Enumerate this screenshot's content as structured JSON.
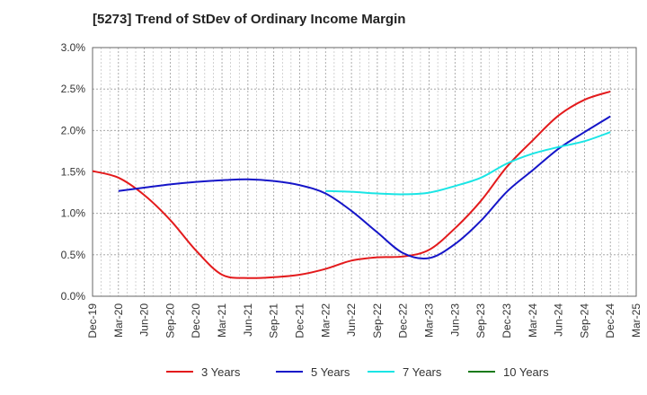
{
  "chart_data": {
    "type": "line",
    "title": "[5273]  Trend of StDev of Ordinary Income Margin",
    "xlabel": "",
    "ylabel": "",
    "ylim": [
      0,
      3.0
    ],
    "y_ticks": [
      "0.0%",
      "0.5%",
      "1.0%",
      "1.5%",
      "2.0%",
      "2.5%",
      "3.0%"
    ],
    "x_ticks": [
      "Dec-19",
      "Mar-20",
      "Jun-20",
      "Sep-20",
      "Dec-20",
      "Mar-21",
      "Jun-21",
      "Sep-21",
      "Dec-21",
      "Mar-22",
      "Jun-22",
      "Sep-22",
      "Dec-22",
      "Mar-23",
      "Jun-23",
      "Sep-23",
      "Dec-23",
      "Mar-24",
      "Jun-24",
      "Sep-24",
      "Dec-24",
      "Mar-25"
    ],
    "grid": true,
    "legend_position": "bottom",
    "series": [
      {
        "name": "3 Years",
        "color": "#e31a1c",
        "values": [
          1.51,
          1.43,
          1.22,
          0.92,
          0.55,
          0.26,
          0.22,
          0.23,
          0.26,
          0.33,
          0.43,
          0.47,
          0.48,
          0.56,
          0.82,
          1.15,
          1.56,
          1.88,
          2.18,
          2.37,
          2.47,
          null
        ]
      },
      {
        "name": "5 Years",
        "color": "#1515c8",
        "values": [
          null,
          1.27,
          1.31,
          1.35,
          1.38,
          1.4,
          1.41,
          1.39,
          1.34,
          1.24,
          1.03,
          0.77,
          0.52,
          0.46,
          0.63,
          0.91,
          1.26,
          1.52,
          1.78,
          1.98,
          2.17,
          null
        ]
      },
      {
        "name": "7 Years",
        "color": "#1ae5e5",
        "values": [
          null,
          null,
          null,
          null,
          null,
          null,
          null,
          null,
          null,
          1.27,
          1.26,
          1.24,
          1.23,
          1.25,
          1.33,
          1.43,
          1.6,
          1.72,
          1.8,
          1.87,
          1.98,
          null
        ]
      },
      {
        "name": "10 Years",
        "color": "#1a7a1a",
        "values": [
          null,
          null,
          null,
          null,
          null,
          null,
          null,
          null,
          null,
          null,
          null,
          null,
          null,
          null,
          null,
          null,
          null,
          null,
          null,
          null,
          null,
          null
        ]
      }
    ]
  }
}
